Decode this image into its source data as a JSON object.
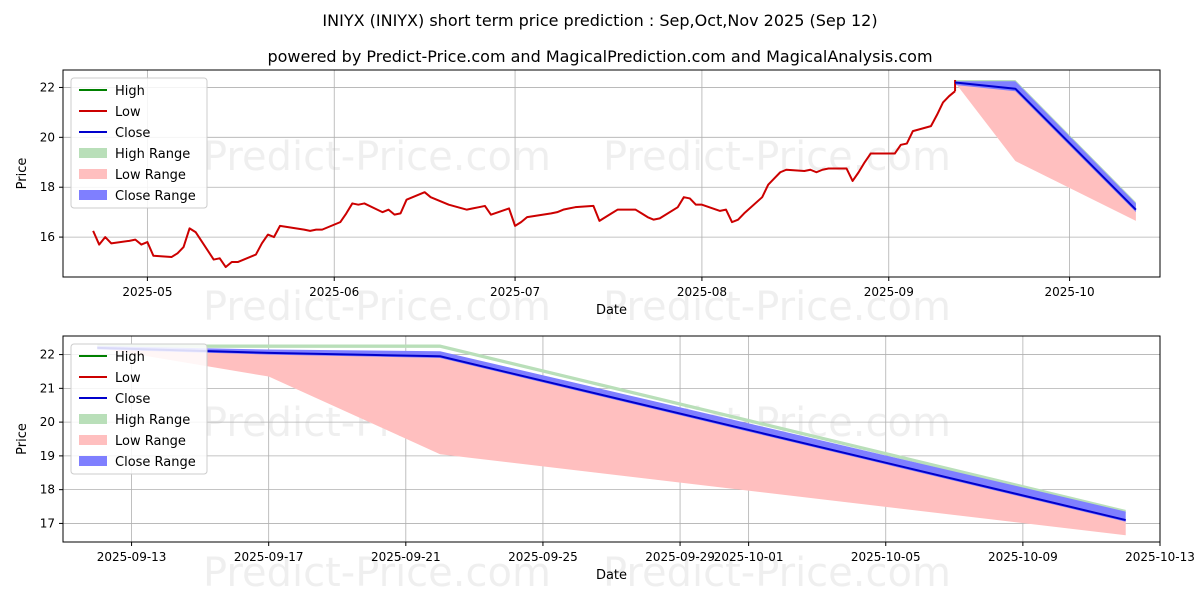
{
  "title": "INIYX (INIYX) short term price prediction : Sep,Oct,Nov 2025 (Sep 12)",
  "subtitle": "powered by Predict-Price.com and MagicalPrediction.com and MagicalAnalysis.com",
  "watermark": "Predict-Price.com",
  "colors": {
    "high": "#008000",
    "low": "#cc0000",
    "close": "#0000cc",
    "high_range": "#b9dfb9",
    "low_range": "#ffbfbf",
    "close_range": "#7f7fff",
    "grid": "#b0b0b0"
  },
  "legend": {
    "high": "High",
    "low": "Low",
    "close": "Close",
    "high_range": "High Range",
    "low_range": "Low Range",
    "close_range": "Close Range"
  },
  "chart_data": [
    {
      "type": "line",
      "xlabel": "Date",
      "ylabel": "Price",
      "legend_position": "top-left",
      "grid": true,
      "xlim": [
        "2025-04-17",
        "2025-10-16"
      ],
      "ylim": [
        14.4,
        22.7
      ],
      "x_ticks": [
        "2025-05-01",
        "2025-06-01",
        "2025-07-01",
        "2025-08-01",
        "2025-09-01",
        "2025-10-01"
      ],
      "x_tick_labels": [
        "2025-05",
        "2025-06",
        "2025-07",
        "2025-08",
        "2025-09",
        "2025-10"
      ],
      "y_ticks": [
        16,
        18,
        20,
        22
      ],
      "history": {
        "x": [
          "2025-04-22",
          "2025-04-23",
          "2025-04-24",
          "2025-04-25",
          "2025-04-28",
          "2025-04-29",
          "2025-04-30",
          "2025-05-01",
          "2025-05-02",
          "2025-05-05",
          "2025-05-06",
          "2025-05-07",
          "2025-05-08",
          "2025-05-09",
          "2025-05-12",
          "2025-05-13",
          "2025-05-14",
          "2025-05-15",
          "2025-05-16",
          "2025-05-19",
          "2025-05-20",
          "2025-05-21",
          "2025-05-22",
          "2025-05-23",
          "2025-05-27",
          "2025-05-28",
          "2025-05-29",
          "2025-05-30",
          "2025-06-02",
          "2025-06-03",
          "2025-06-04",
          "2025-06-05",
          "2025-06-06",
          "2025-06-09",
          "2025-06-10",
          "2025-06-11",
          "2025-06-12",
          "2025-06-13",
          "2025-06-16",
          "2025-06-17",
          "2025-06-18",
          "2025-06-20",
          "2025-06-23",
          "2025-06-24",
          "2025-06-25",
          "2025-06-26",
          "2025-06-27",
          "2025-06-30",
          "2025-07-01",
          "2025-07-02",
          "2025-07-03",
          "2025-07-07",
          "2025-07-08",
          "2025-07-09",
          "2025-07-10",
          "2025-07-11",
          "2025-07-14",
          "2025-07-15",
          "2025-07-16",
          "2025-07-17",
          "2025-07-18",
          "2025-07-21",
          "2025-07-22",
          "2025-07-23",
          "2025-07-24",
          "2025-07-25",
          "2025-07-28",
          "2025-07-29",
          "2025-07-30",
          "2025-07-31",
          "2025-08-01",
          "2025-08-04",
          "2025-08-05",
          "2025-08-06",
          "2025-08-07",
          "2025-08-08",
          "2025-08-11",
          "2025-08-12",
          "2025-08-13",
          "2025-08-14",
          "2025-08-15",
          "2025-08-18",
          "2025-08-19",
          "2025-08-20",
          "2025-08-21",
          "2025-08-22",
          "2025-08-25",
          "2025-08-26",
          "2025-08-27",
          "2025-08-28",
          "2025-08-29",
          "2025-09-02",
          "2025-09-03",
          "2025-09-04",
          "2025-09-05",
          "2025-09-08",
          "2025-09-09",
          "2025-09-10",
          "2025-09-11",
          "2025-09-12"
        ],
        "values": [
          16.25,
          15.7,
          16.0,
          15.75,
          15.85,
          15.9,
          15.7,
          15.8,
          15.25,
          15.2,
          15.35,
          15.6,
          16.35,
          16.2,
          15.1,
          15.15,
          14.8,
          15.0,
          15.0,
          15.3,
          15.75,
          16.1,
          16.0,
          16.45,
          16.3,
          16.25,
          16.3,
          16.3,
          16.6,
          16.95,
          17.35,
          17.3,
          17.35,
          17.0,
          17.1,
          16.9,
          16.95,
          17.5,
          17.8,
          17.6,
          17.5,
          17.3,
          17.1,
          17.15,
          17.2,
          17.25,
          16.9,
          17.15,
          16.45,
          16.6,
          16.8,
          16.95,
          17.0,
          17.1,
          17.15,
          17.2,
          17.25,
          16.65,
          16.8,
          16.95,
          17.1,
          17.1,
          16.95,
          16.8,
          16.7,
          16.75,
          17.2,
          17.6,
          17.55,
          17.3,
          17.3,
          17.05,
          17.1,
          16.6,
          16.7,
          16.95,
          17.6,
          18.1,
          18.35,
          18.6,
          18.7,
          18.65,
          18.7,
          18.6,
          18.7,
          18.75,
          18.75,
          18.25,
          18.6,
          19.0,
          19.35,
          19.35,
          19.7,
          19.75,
          20.25,
          20.45,
          20.9,
          21.4,
          21.65,
          21.85
        ],
        "end_values": [
          21.7,
          22.0,
          22.3,
          22.2
        ]
      },
      "forecast": {
        "x": [
          "2025-09-12",
          "2025-09-22",
          "2025-10-12"
        ],
        "close": [
          22.2,
          21.95,
          17.1
        ],
        "high": [
          22.25,
          22.25,
          17.35
        ],
        "high_range_upper": [
          22.3,
          22.3,
          17.4
        ],
        "close_range_lower": [
          22.1,
          21.85,
          17.0
        ],
        "low_upper": [
          22.2,
          22.0,
          17.1
        ],
        "low_lower": [
          22.2,
          19.05,
          16.65
        ]
      }
    },
    {
      "type": "line",
      "xlabel": "Date",
      "ylabel": "Price",
      "legend_position": "top-left",
      "grid": true,
      "xlim": [
        "2025-09-11",
        "2025-10-13"
      ],
      "ylim": [
        16.45,
        22.55
      ],
      "x_ticks": [
        "2025-09-13",
        "2025-09-17",
        "2025-09-21",
        "2025-09-25",
        "2025-09-29",
        "2025-10-01",
        "2025-10-05",
        "2025-10-09",
        "2025-10-13"
      ],
      "y_ticks": [
        17,
        18,
        19,
        20,
        21,
        22
      ],
      "forecast": {
        "x": [
          "2025-09-12",
          "2025-09-17",
          "2025-09-22",
          "2025-10-12"
        ],
        "close": [
          22.2,
          22.05,
          21.95,
          17.1
        ],
        "high_upper": [
          22.3,
          22.3,
          22.3,
          17.4
        ],
        "high_lower": [
          22.2,
          22.2,
          22.2,
          17.3
        ],
        "close_upper": [
          22.25,
          22.15,
          22.1,
          17.35
        ],
        "close_lower": [
          22.15,
          22.0,
          21.9,
          17.05
        ],
        "low_upper": [
          22.2,
          22.1,
          22.0,
          17.1
        ],
        "low_lower": [
          22.2,
          21.35,
          19.05,
          16.65
        ]
      }
    }
  ]
}
